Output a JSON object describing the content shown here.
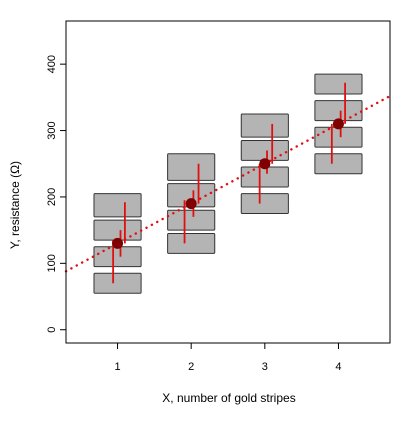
{
  "chart_data": {
    "type": "scatter",
    "title": "",
    "xlabel": "X, number of gold stripes",
    "ylabel": "Y, resistance (Ω)",
    "xlim": [
      0.3,
      4.7
    ],
    "ylim": [
      -20,
      465
    ],
    "x_ticks": [
      "1",
      "2",
      "3",
      "4"
    ],
    "y_ticks": [
      "0",
      "100",
      "200",
      "300",
      "400"
    ],
    "points": [
      {
        "x": 1,
        "y": 130
      },
      {
        "x": 2,
        "y": 190
      },
      {
        "x": 3,
        "y": 250
      },
      {
        "x": 4,
        "y": 310
      }
    ],
    "fit_line": {
      "intercept": 70,
      "slope": 60,
      "style": "dotted",
      "color": "#e01010"
    },
    "bands": [
      {
        "x": 1,
        "y_lower": [
          55,
          95,
          135,
          170
        ],
        "y_upper": [
          85,
          125,
          165,
          205
        ]
      },
      {
        "x": 2,
        "y_lower": [
          115,
          150,
          185,
          225
        ],
        "y_upper": [
          145,
          180,
          220,
          265
        ]
      },
      {
        "x": 3,
        "y_lower": [
          175,
          215,
          255,
          290
        ],
        "y_upper": [
          205,
          245,
          285,
          325
        ]
      },
      {
        "x": 4,
        "y_lower": [
          235,
          275,
          315,
          355
        ],
        "y_upper": [
          265,
          305,
          345,
          385
        ]
      }
    ],
    "error_bars": [
      {
        "x": 0.94,
        "y_low": 70,
        "y_high": 135
      },
      {
        "x": 1.04,
        "y_low": 110,
        "y_high": 150
      },
      {
        "x": 1.1,
        "y_low": 130,
        "y_high": 192
      },
      {
        "x": 1.91,
        "y_low": 130,
        "y_high": 195
      },
      {
        "x": 2.03,
        "y_low": 170,
        "y_high": 210
      },
      {
        "x": 2.1,
        "y_low": 190,
        "y_high": 250
      },
      {
        "x": 2.93,
        "y_low": 190,
        "y_high": 250
      },
      {
        "x": 3.03,
        "y_low": 235,
        "y_high": 270
      },
      {
        "x": 3.1,
        "y_low": 250,
        "y_high": 310
      },
      {
        "x": 3.91,
        "y_low": 250,
        "y_high": 310
      },
      {
        "x": 4.03,
        "y_low": 290,
        "y_high": 330
      },
      {
        "x": 4.09,
        "y_low": 310,
        "y_high": 372
      }
    ],
    "grid": false,
    "colors": {
      "point": "#7f0000",
      "error_bar": "#e01010",
      "band_fill": "#b4b4b4",
      "band_stroke": "#333333"
    }
  }
}
